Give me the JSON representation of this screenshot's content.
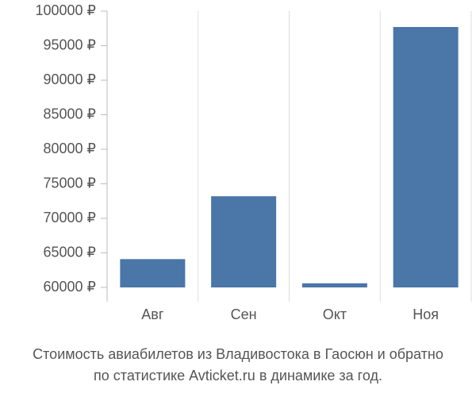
{
  "chart_data": {
    "type": "bar",
    "title": [
      "Стоимость авиабилетов из Владивостока в Гаосюн и обратно",
      "по статистике Avticket.ru в динамике за год."
    ],
    "categories": [
      "Авг",
      "Сен",
      "Окт",
      "Ноя"
    ],
    "values": [
      64100,
      73200,
      60600,
      97700
    ],
    "color": "#4a76a8",
    "ylim": [
      60000,
      100000
    ],
    "yticks": [
      {
        "value": 60000,
        "label": "60000 ₽"
      },
      {
        "value": 65000,
        "label": "65000 ₽"
      },
      {
        "value": 70000,
        "label": "70000 ₽"
      },
      {
        "value": 75000,
        "label": "75000 ₽"
      },
      {
        "value": 80000,
        "label": "80000 ₽"
      },
      {
        "value": 85000,
        "label": "85000 ₽"
      },
      {
        "value": 90000,
        "label": "90000 ₽"
      },
      {
        "value": 95000,
        "label": "95000 ₽"
      },
      {
        "value": 100000,
        "label": "100000 ₽"
      }
    ],
    "grid": true
  }
}
